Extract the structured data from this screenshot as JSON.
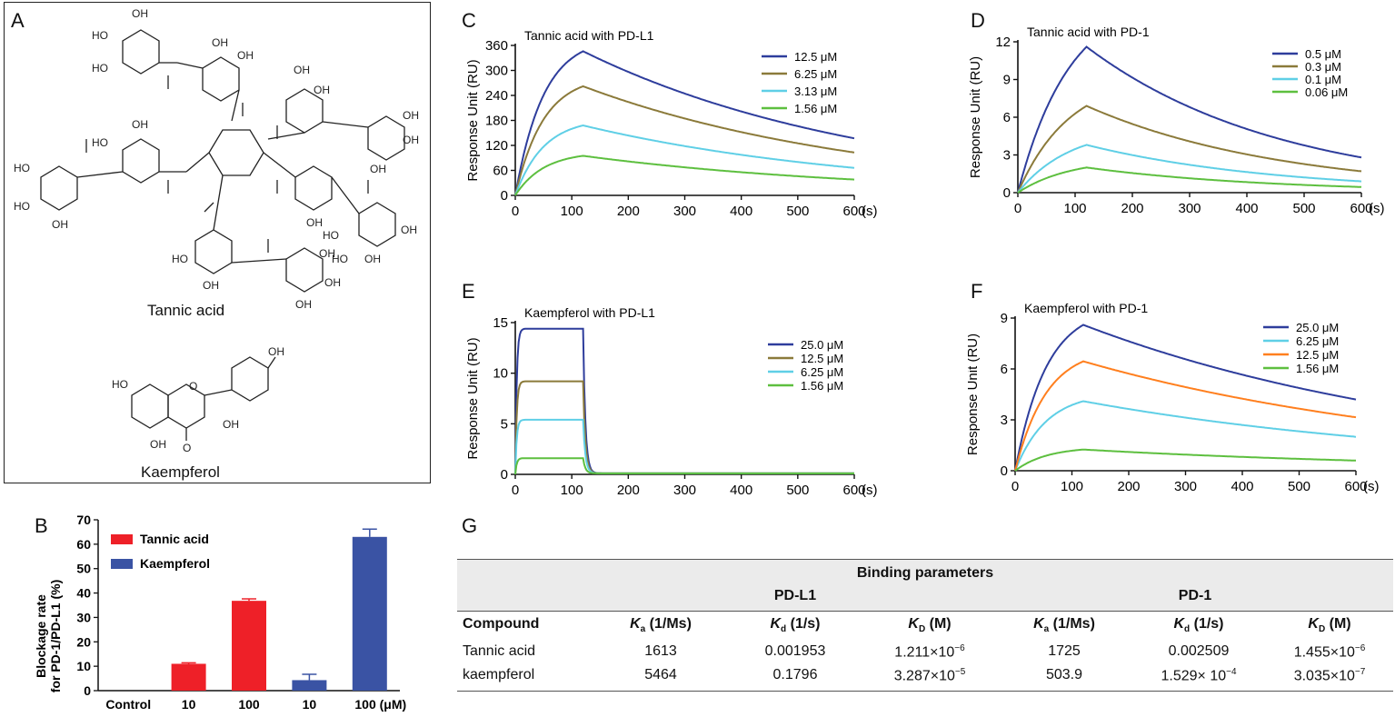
{
  "panels": {
    "A": "A",
    "B": "B",
    "C": "C",
    "D": "D",
    "E": "E",
    "F": "F",
    "G": "G"
  },
  "panel_a": {
    "compound1_name": "Tannic acid",
    "compound2_name": "Kaempferol",
    "oh": "OH",
    "ho": "HO",
    "o": "O"
  },
  "colors": {
    "navy": "#2e3d9c",
    "olive": "#8b7a3a",
    "cyan": "#5fcfe6",
    "green": "#5dbf3f",
    "orange": "#ff7f1e",
    "red": "#ee2028",
    "bar_blue": "#3a53a4"
  },
  "chart_data": [
    {
      "id": "B",
      "type": "bar",
      "ylabel_line1": "Blockage rate",
      "ylabel_line2": "for PD-1/PD-L1 (%)",
      "categories": [
        "Control",
        "10",
        "100",
        "10",
        "100 (μM)"
      ],
      "values": [
        0,
        11,
        36.8,
        4.3,
        63
      ],
      "errors": [
        0,
        0.4,
        0.8,
        2.4,
        3.2
      ],
      "bar_series": [
        "",
        "Tannic acid",
        "Tannic acid",
        "Kaempferol",
        "Kaempferol"
      ],
      "legend": [
        "Tannic acid",
        "Kaempferol"
      ],
      "ylim": [
        0,
        70
      ],
      "yticks": [
        0,
        10,
        20,
        30,
        40,
        50,
        60,
        70
      ]
    },
    {
      "id": "C",
      "type": "line",
      "title": "Tannic acid with PD-L1",
      "ylabel": "Response Unit (RU)",
      "xlabel": "(s)",
      "xlim": [
        0,
        600
      ],
      "ylim": [
        0,
        360
      ],
      "xticks": [
        0,
        100,
        200,
        300,
        400,
        500,
        600
      ],
      "yticks": [
        0,
        60,
        120,
        180,
        240,
        300,
        360
      ],
      "peak_x": 120,
      "tau_assoc": 50,
      "series": [
        {
          "name": "12.5 μM",
          "peak": 346,
          "end": 137,
          "color": "#2e3d9c"
        },
        {
          "name": "6.25 μM",
          "peak": 262,
          "end": 103,
          "color": "#8b7a3a"
        },
        {
          "name": "3.13 μM",
          "peak": 168,
          "end": 66,
          "color": "#5fcfe6"
        },
        {
          "name": "1.56 μM",
          "peak": 95,
          "end": 38,
          "color": "#5dbf3f"
        }
      ]
    },
    {
      "id": "D",
      "type": "line",
      "title": "Tannic acid with PD-1",
      "ylabel": "Response Unit (RU)",
      "xlabel": "(s)",
      "xlim": [
        0,
        600
      ],
      "ylim": [
        0,
        12
      ],
      "xticks": [
        0,
        100,
        200,
        300,
        400,
        500,
        600
      ],
      "yticks": [
        0,
        3,
        6,
        9,
        12
      ],
      "peak_x": 120,
      "tau_assoc": 90,
      "series": [
        {
          "name": "0.5 μM",
          "peak": 11.6,
          "end": 2.8,
          "color": "#2e3d9c"
        },
        {
          "name": "0.3 μM",
          "peak": 6.9,
          "end": 1.7,
          "color": "#8b7a3a"
        },
        {
          "name": "0.1 μM",
          "peak": 3.8,
          "end": 0.9,
          "color": "#5fcfe6"
        },
        {
          "name": "0.06 μM",
          "peak": 2.0,
          "end": 0.45,
          "color": "#5dbf3f"
        }
      ]
    },
    {
      "id": "E",
      "type": "line",
      "title": "Kaempferol with PD-L1",
      "ylabel": "Response Unit (RU)",
      "xlabel": "(s)",
      "xlim": [
        0,
        600
      ],
      "ylim": [
        0,
        15
      ],
      "xticks": [
        0,
        100,
        200,
        300,
        400,
        500,
        600
      ],
      "yticks": [
        0,
        5,
        10,
        15
      ],
      "peak_x": 120,
      "tau_assoc": 2.5,
      "square": true,
      "series": [
        {
          "name": "25.0 μM",
          "peak": 14.4,
          "end": 0.1,
          "color": "#2e3d9c"
        },
        {
          "name": "12.5 μM",
          "peak": 9.2,
          "end": 0.1,
          "color": "#8b7a3a"
        },
        {
          "name": "6.25 μM",
          "peak": 5.4,
          "end": 0.1,
          "color": "#5fcfe6"
        },
        {
          "name": "1.56 μM",
          "peak": 1.6,
          "end": 0.1,
          "color": "#5dbf3f"
        }
      ]
    },
    {
      "id": "F",
      "type": "line",
      "title": "Kaempferol with PD-1",
      "ylabel": "Response Unit (RU)",
      "xlabel": "(s)",
      "xlim": [
        0,
        600
      ],
      "ylim": [
        0,
        9
      ],
      "xticks": [
        0,
        100,
        200,
        300,
        400,
        500,
        600
      ],
      "yticks": [
        0,
        3,
        6,
        9
      ],
      "peak_x": 120,
      "tau_assoc": 55,
      "series": [
        {
          "name": "25.0 μM",
          "peak": 8.6,
          "end": 4.2,
          "color": "#2e3d9c"
        },
        {
          "name": "6.25 μM",
          "peak": 4.1,
          "end": 2.0,
          "color": "#5fcfe6"
        },
        {
          "name": "12.5 μM",
          "peak": 6.45,
          "end": 3.15,
          "color": "#ff7f1e"
        },
        {
          "name": "1.56 μM",
          "peak": 1.25,
          "end": 0.6,
          "color": "#5dbf3f"
        }
      ]
    },
    {
      "id": "G",
      "type": "table",
      "title": "Binding parameters",
      "group1": "PD-L1",
      "group2": "PD-1",
      "col_compound": "Compound",
      "col_ka": "(1/Ms)",
      "col_kd": "(1/s)",
      "col_KD": "(M)",
      "sym_k": "K",
      "sub_a": "a",
      "sub_d": "d",
      "sub_D": "D",
      "rows": [
        {
          "name": "Tannic acid",
          "ka1": "1613",
          "kd1": "0.001953",
          "KD1_m": "1.211×10",
          "KD1_e": "−6",
          "ka2": "1725",
          "kd2": "0.002509",
          "KD2_m": "1.455×10",
          "KD2_e": "−6"
        },
        {
          "name": "kaempferol",
          "ka1": "5464",
          "kd1": "0.1796",
          "KD1_m": "3.287×10",
          "KD1_e": "−5",
          "ka2": "503.9",
          "kd2_m": "1.529× 10",
          "kd2_e": "−4",
          "KD2_m": "3.035×10",
          "KD2_e": "−7"
        }
      ]
    }
  ]
}
